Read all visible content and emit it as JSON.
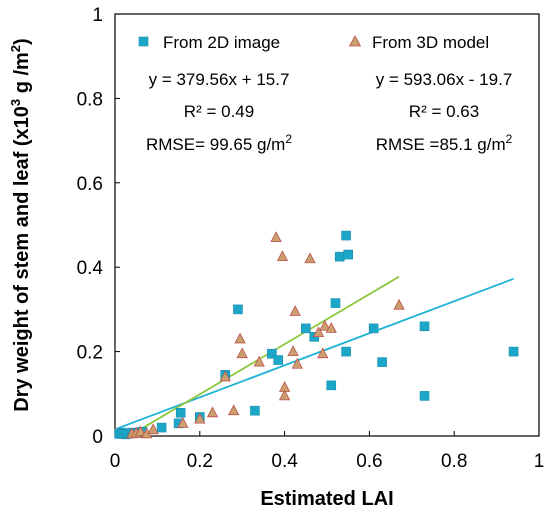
{
  "chart_data": {
    "type": "scatter",
    "xlabel": "Estimated LAI",
    "ylabel": "Dry weight of stem and leaf (x10",
    "ylabel_sup": "3",
    "ylabel_unit": " g /m",
    "ylabel_unit_sup": "2",
    "ylabel_close": ")",
    "xlim": [
      0,
      1
    ],
    "ylim": [
      0,
      1
    ],
    "xticks": [
      "0",
      "0.2",
      "0.4",
      "0.6",
      "0.8",
      "1"
    ],
    "yticks": [
      "0",
      "0.2",
      "0.4",
      "0.6",
      "0.8",
      "1"
    ],
    "grid": false,
    "series": [
      {
        "name": "From 2D image",
        "marker": "square",
        "color": "#1ca7c9",
        "equation": "y = 379.56x + 15.7",
        "r2": "R² = 0.49",
        "rmse_prefix": "RMSE= 99.65 g/m",
        "rmse_sup": "2",
        "trend": {
          "slope": 0.37956,
          "intercept": 0.0157,
          "x_range": [
            0.005,
            0.94
          ]
        },
        "points": [
          [
            0.01,
            0.005
          ],
          [
            0.015,
            0.008
          ],
          [
            0.02,
            0.005
          ],
          [
            0.025,
            0.004
          ],
          [
            0.03,
            0.006
          ],
          [
            0.04,
            0.008
          ],
          [
            0.05,
            0.007
          ],
          [
            0.06,
            0.009
          ],
          [
            0.065,
            0.01
          ],
          [
            0.11,
            0.02
          ],
          [
            0.15,
            0.03
          ],
          [
            0.155,
            0.055
          ],
          [
            0.2,
            0.045
          ],
          [
            0.26,
            0.145
          ],
          [
            0.29,
            0.3
          ],
          [
            0.33,
            0.06
          ],
          [
            0.37,
            0.195
          ],
          [
            0.385,
            0.18
          ],
          [
            0.45,
            0.255
          ],
          [
            0.47,
            0.235
          ],
          [
            0.51,
            0.12
          ],
          [
            0.52,
            0.315
          ],
          [
            0.53,
            0.425
          ],
          [
            0.545,
            0.475
          ],
          [
            0.545,
            0.2
          ],
          [
            0.55,
            0.43
          ],
          [
            0.61,
            0.255
          ],
          [
            0.63,
            0.175
          ],
          [
            0.73,
            0.26
          ],
          [
            0.73,
            0.095
          ],
          [
            0.94,
            0.2
          ]
        ]
      },
      {
        "name": "From 3D model",
        "marker": "triangle",
        "color": "#c9a06e",
        "equation": "y = 593.06x - 19.7",
        "r2": "R² = 0.63",
        "rmse_prefix": "RMSE =85.1 g/m",
        "rmse_sup": "2",
        "trend": {
          "slope": 0.59306,
          "intercept": -0.0197,
          "x_range": [
            0.035,
            0.67
          ]
        },
        "points": [
          [
            0.04,
            0.005
          ],
          [
            0.05,
            0.006
          ],
          [
            0.06,
            0.01
          ],
          [
            0.075,
            0.005
          ],
          [
            0.09,
            0.015
          ],
          [
            0.16,
            0.03
          ],
          [
            0.2,
            0.04
          ],
          [
            0.23,
            0.055
          ],
          [
            0.26,
            0.14
          ],
          [
            0.28,
            0.06
          ],
          [
            0.295,
            0.23
          ],
          [
            0.3,
            0.195
          ],
          [
            0.34,
            0.175
          ],
          [
            0.38,
            0.47
          ],
          [
            0.395,
            0.425
          ],
          [
            0.4,
            0.115
          ],
          [
            0.4,
            0.095
          ],
          [
            0.42,
            0.2
          ],
          [
            0.425,
            0.295
          ],
          [
            0.43,
            0.17
          ],
          [
            0.46,
            0.42
          ],
          [
            0.48,
            0.245
          ],
          [
            0.49,
            0.195
          ],
          [
            0.495,
            0.26
          ],
          [
            0.51,
            0.255
          ],
          [
            0.67,
            0.31
          ]
        ]
      }
    ]
  },
  "colors": {
    "trend_2d": "#1fb4d6",
    "trend_3d": "#8dc63f",
    "triangle_stroke": "#c0504d"
  }
}
